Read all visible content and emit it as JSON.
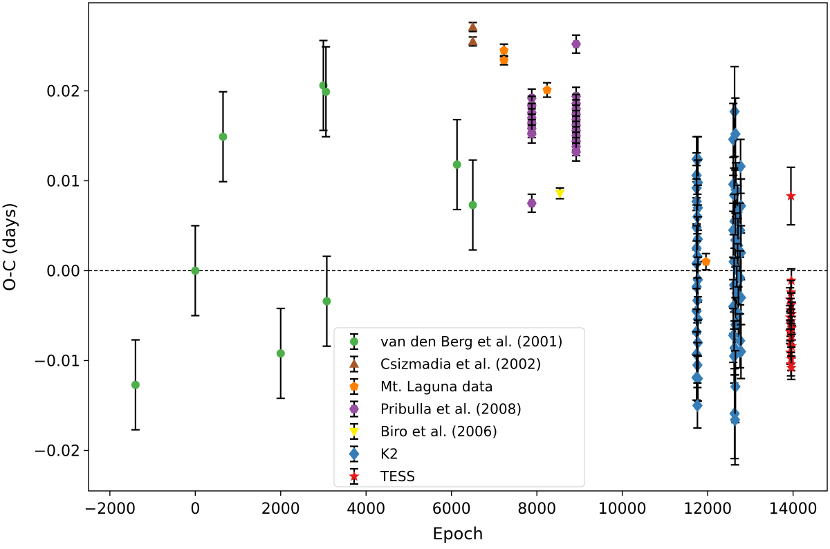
{
  "chart_data": {
    "type": "scatter",
    "title": "",
    "xlabel": "Epoch",
    "ylabel": "O-C (days)",
    "xlim": [
      -2500,
      14800
    ],
    "ylim": [
      -0.0245,
      0.0298
    ],
    "x_ticks": [
      -2000,
      0,
      2000,
      4000,
      6000,
      8000,
      10000,
      12000,
      14000
    ],
    "x_tick_labels": [
      "−2000",
      "0",
      "2000",
      "4000",
      "6000",
      "8000",
      "10000",
      "12000",
      "14000"
    ],
    "y_ticks": [
      -0.02,
      -0.01,
      0.0,
      0.01,
      0.02
    ],
    "y_tick_labels": [
      "−0.02",
      "−0.01",
      "0.00",
      "0.01",
      "0.02"
    ],
    "reference_line": {
      "y": 0.0,
      "style": "dashed"
    },
    "grid": false,
    "legend": {
      "placement": "bottom-center"
    },
    "series": [
      {
        "name": "van den Berg et al. (2001)",
        "color": "#4daf4a",
        "marker": "circle",
        "points": [
          {
            "x": -1400,
            "y": -0.0127,
            "err": 0.005
          },
          {
            "x": 0,
            "y": 0.0,
            "err": 0.005
          },
          {
            "x": 650,
            "y": 0.0149,
            "err": 0.005
          },
          {
            "x": 2000,
            "y": -0.0092,
            "err": 0.005
          },
          {
            "x": 3000,
            "y": 0.0206,
            "err": 0.005
          },
          {
            "x": 3060,
            "y": 0.0199,
            "err": 0.005
          },
          {
            "x": 3080,
            "y": -0.0034,
            "err": 0.005
          },
          {
            "x": 6130,
            "y": 0.0118,
            "err": 0.005
          },
          {
            "x": 6500,
            "y": 0.0073,
            "err": 0.005
          }
        ]
      },
      {
        "name": "Csizmadia et al. (2002)",
        "color": "#a65628",
        "marker": "triangle-up",
        "points": [
          {
            "x": 6500,
            "y": 0.0271,
            "err": 0.0005
          },
          {
            "x": 6500,
            "y": 0.0255,
            "err": 0.0005
          }
        ]
      },
      {
        "name": "Mt. Laguna data",
        "color": "#ff7f00",
        "marker": "pentagon",
        "points": [
          {
            "x": 7230,
            "y": 0.0245,
            "err": 0.0007
          },
          {
            "x": 7230,
            "y": 0.0234,
            "err": 0.0005
          },
          {
            "x": 8240,
            "y": 0.0201,
            "err": 0.0008
          },
          {
            "x": 11960,
            "y": 0.001,
            "err": 0.0009
          }
        ]
      },
      {
        "name": "Pribulla et al. (2008)",
        "color": "#984ea3",
        "marker": "hexagon",
        "points": [
          {
            "x": 7880,
            "y": 0.0192,
            "err": 0.001
          },
          {
            "x": 7880,
            "y": 0.0184,
            "err": 0.001
          },
          {
            "x": 7880,
            "y": 0.0176,
            "err": 0.001
          },
          {
            "x": 7880,
            "y": 0.017,
            "err": 0.001
          },
          {
            "x": 7880,
            "y": 0.0164,
            "err": 0.001
          },
          {
            "x": 7880,
            "y": 0.0158,
            "err": 0.001
          },
          {
            "x": 7880,
            "y": 0.0152,
            "err": 0.001
          },
          {
            "x": 7880,
            "y": 0.0075,
            "err": 0.001
          },
          {
            "x": 8920,
            "y": 0.0252,
            "err": 0.001
          },
          {
            "x": 8920,
            "y": 0.0194,
            "err": 0.001
          },
          {
            "x": 8920,
            "y": 0.0186,
            "err": 0.001
          },
          {
            "x": 8920,
            "y": 0.018,
            "err": 0.001
          },
          {
            "x": 8920,
            "y": 0.0174,
            "err": 0.001
          },
          {
            "x": 8920,
            "y": 0.0168,
            "err": 0.001
          },
          {
            "x": 8920,
            "y": 0.0162,
            "err": 0.001
          },
          {
            "x": 8920,
            "y": 0.0156,
            "err": 0.001
          },
          {
            "x": 8920,
            "y": 0.015,
            "err": 0.001
          },
          {
            "x": 8920,
            "y": 0.0144,
            "err": 0.001
          },
          {
            "x": 8920,
            "y": 0.0138,
            "err": 0.001
          },
          {
            "x": 8920,
            "y": 0.0132,
            "err": 0.001
          }
        ]
      },
      {
        "name": "Biro et al. (2006)",
        "color": "#ffed00",
        "marker": "triangle-down",
        "points": [
          {
            "x": 8540,
            "y": 0.0086,
            "err": 0.0006
          }
        ]
      },
      {
        "name": "K2",
        "color": "#377eb8",
        "marker": "diamond",
        "points": [
          {
            "x": 11740,
            "y": 0.0124,
            "err": 0.0025
          },
          {
            "x": 11770,
            "y": 0.0124,
            "err": 0.0025
          },
          {
            "x": 11740,
            "y": 0.0106,
            "err": 0.0025
          },
          {
            "x": 11770,
            "y": 0.0098,
            "err": 0.0025
          },
          {
            "x": 11740,
            "y": 0.0092,
            "err": 0.0025
          },
          {
            "x": 11740,
            "y": 0.0077,
            "err": 0.0025
          },
          {
            "x": 11770,
            "y": 0.007,
            "err": 0.0025
          },
          {
            "x": 11760,
            "y": 0.006,
            "err": 0.0025
          },
          {
            "x": 11740,
            "y": 0.0048,
            "err": 0.0025
          },
          {
            "x": 11770,
            "y": 0.0035,
            "err": 0.0025
          },
          {
            "x": 11740,
            "y": 0.0025,
            "err": 0.0025
          },
          {
            "x": 11760,
            "y": 0.0016,
            "err": 0.0025
          },
          {
            "x": 11740,
            "y": 0.0008,
            "err": 0.0025
          },
          {
            "x": 11770,
            "y": -0.001,
            "err": 0.0025
          },
          {
            "x": 11740,
            "y": -0.0018,
            "err": 0.0025
          },
          {
            "x": 11760,
            "y": -0.0033,
            "err": 0.0025
          },
          {
            "x": 11740,
            "y": -0.0045,
            "err": 0.0025
          },
          {
            "x": 11770,
            "y": -0.0054,
            "err": 0.0025
          },
          {
            "x": 11740,
            "y": -0.0068,
            "err": 0.0025
          },
          {
            "x": 11770,
            "y": -0.008,
            "err": 0.0025
          },
          {
            "x": 11740,
            "y": -0.0093,
            "err": 0.0025
          },
          {
            "x": 11760,
            "y": -0.0105,
            "err": 0.0025
          },
          {
            "x": 11740,
            "y": -0.0119,
            "err": 0.0025
          },
          {
            "x": 11770,
            "y": -0.012,
            "err": 0.0025
          },
          {
            "x": 11760,
            "y": -0.015,
            "err": 0.0025
          },
          {
            "x": 12630,
            "y": 0.0177,
            "err": 0.005
          },
          {
            "x": 12600,
            "y": 0.0146,
            "err": 0.004
          },
          {
            "x": 12650,
            "y": 0.0152,
            "err": 0.004
          },
          {
            "x": 12770,
            "y": 0.0116,
            "err": 0.003
          },
          {
            "x": 12600,
            "y": 0.0096,
            "err": 0.003
          },
          {
            "x": 12660,
            "y": 0.009,
            "err": 0.003
          },
          {
            "x": 12620,
            "y": 0.0084,
            "err": 0.003
          },
          {
            "x": 12780,
            "y": 0.0072,
            "err": 0.003
          },
          {
            "x": 12700,
            "y": 0.0065,
            "err": 0.003
          },
          {
            "x": 12630,
            "y": 0.0055,
            "err": 0.003
          },
          {
            "x": 12600,
            "y": 0.0045,
            "err": 0.003
          },
          {
            "x": 12760,
            "y": 0.0045,
            "err": 0.003
          },
          {
            "x": 12650,
            "y": 0.0034,
            "err": 0.003
          },
          {
            "x": 12710,
            "y": 0.0028,
            "err": 0.003
          },
          {
            "x": 12780,
            "y": 0.002,
            "err": 0.003
          },
          {
            "x": 12610,
            "y": 0.001,
            "err": 0.003
          },
          {
            "x": 12700,
            "y": 0.0,
            "err": 0.003
          },
          {
            "x": 12760,
            "y": -0.0008,
            "err": 0.003
          },
          {
            "x": 12620,
            "y": -0.0016,
            "err": 0.003
          },
          {
            "x": 12680,
            "y": -0.0025,
            "err": 0.003
          },
          {
            "x": 12780,
            "y": -0.003,
            "err": 0.003
          },
          {
            "x": 12600,
            "y": -0.004,
            "err": 0.003
          },
          {
            "x": 12720,
            "y": -0.0048,
            "err": 0.003
          },
          {
            "x": 12650,
            "y": -0.006,
            "err": 0.003
          },
          {
            "x": 12600,
            "y": -0.0072,
            "err": 0.003
          },
          {
            "x": 12760,
            "y": -0.0078,
            "err": 0.003
          },
          {
            "x": 12630,
            "y": -0.0086,
            "err": 0.003
          },
          {
            "x": 12780,
            "y": -0.009,
            "err": 0.003
          },
          {
            "x": 12620,
            "y": -0.0095,
            "err": 0.003
          },
          {
            "x": 12650,
            "y": -0.0129,
            "err": 0.004
          },
          {
            "x": 12630,
            "y": -0.0159,
            "err": 0.005
          },
          {
            "x": 12640,
            "y": -0.0166,
            "err": 0.005
          }
        ]
      },
      {
        "name": "TESS",
        "color": "#e41a1c",
        "marker": "star",
        "points": [
          {
            "x": 13950,
            "y": 0.0083,
            "err": 0.0032
          },
          {
            "x": 13960,
            "y": -0.0011,
            "err": 0.0013
          },
          {
            "x": 13950,
            "y": -0.0024,
            "err": 0.0013
          },
          {
            "x": 13930,
            "y": -0.0032,
            "err": 0.0013
          },
          {
            "x": 13960,
            "y": -0.0038,
            "err": 0.0013
          },
          {
            "x": 13940,
            "y": -0.0044,
            "err": 0.0013
          },
          {
            "x": 13970,
            "y": -0.0048,
            "err": 0.0013
          },
          {
            "x": 13930,
            "y": -0.0052,
            "err": 0.0013
          },
          {
            "x": 13955,
            "y": -0.0056,
            "err": 0.0013
          },
          {
            "x": 13940,
            "y": -0.006,
            "err": 0.0013
          },
          {
            "x": 13970,
            "y": -0.0064,
            "err": 0.0013
          },
          {
            "x": 13930,
            "y": -0.0068,
            "err": 0.0013
          },
          {
            "x": 13960,
            "y": -0.0072,
            "err": 0.0013
          },
          {
            "x": 13945,
            "y": -0.0078,
            "err": 0.0013
          },
          {
            "x": 13965,
            "y": -0.0084,
            "err": 0.0013
          },
          {
            "x": 13935,
            "y": -0.0091,
            "err": 0.0013
          },
          {
            "x": 13955,
            "y": -0.0098,
            "err": 0.0013
          },
          {
            "x": 13950,
            "y": -0.0104,
            "err": 0.0013
          },
          {
            "x": 13960,
            "y": -0.0108,
            "err": 0.0013
          }
        ]
      }
    ]
  }
}
